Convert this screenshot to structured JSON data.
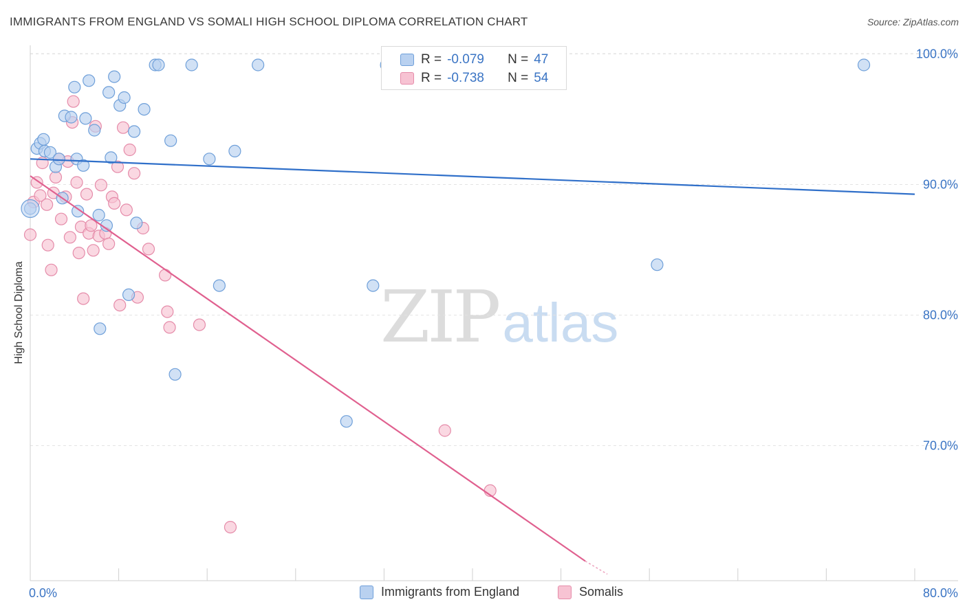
{
  "title": "IMMIGRANTS FROM ENGLAND VS SOMALI HIGH SCHOOL DIPLOMA CORRELATION CHART",
  "source": "Source: ZipAtlas.com",
  "watermark": {
    "zip": "ZIP",
    "atlas": "atlas"
  },
  "legend_top": {
    "rows": [
      {
        "r_label": "R =",
        "r_value": "-0.079",
        "n_label": "N =",
        "n_value": "47"
      },
      {
        "r_label": "R =",
        "r_value": "-0.738",
        "n_label": "N =",
        "n_value": "54"
      }
    ]
  },
  "legend_bottom": {
    "items": [
      {
        "label": "Immigrants from England"
      },
      {
        "label": "Somalis"
      }
    ]
  },
  "colors": {
    "blue_fill": "#b9d1f0",
    "blue_stroke": "#6e9fd9",
    "blue_line": "#2f6fc9",
    "pink_fill": "#f7c3d3",
    "pink_stroke": "#e58ba9",
    "pink_line": "#e0608f",
    "tick_label": "#3a74c4",
    "grid": "#e3e3e3"
  },
  "chart_data": {
    "type": "scatter",
    "title": "IMMIGRANTS FROM ENGLAND VS SOMALI HIGH SCHOOL DIPLOMA CORRELATION CHART",
    "xlabel": "",
    "ylabel": "High School Diploma",
    "xlim": [
      0,
      80
    ],
    "ylim": [
      60.5,
      101.5
    ],
    "x_tick_labels": [
      "0.0%",
      "80.0%"
    ],
    "y_ticks": [
      70,
      80,
      90,
      100
    ],
    "y_tick_labels": [
      "70.0%",
      "80.0%",
      "90.0%",
      "100.0%"
    ],
    "grid": "horizontal dashed",
    "legend": "bottom-center",
    "series": [
      {
        "name": "Immigrants from England",
        "r": -0.079,
        "n": 47,
        "trend": {
          "x": [
            0,
            80
          ],
          "y": [
            92.8,
            90.1
          ]
        },
        "points": [
          [
            0.0,
            89.0
          ],
          [
            0.6,
            93.6
          ],
          [
            0.9,
            94.0
          ],
          [
            1.2,
            94.3
          ],
          [
            1.3,
            93.4
          ],
          [
            1.8,
            93.3
          ],
          [
            2.3,
            92.2
          ],
          [
            2.6,
            92.8
          ],
          [
            2.9,
            89.8
          ],
          [
            3.1,
            96.1
          ],
          [
            3.7,
            96.0
          ],
          [
            4.0,
            98.3
          ],
          [
            4.2,
            92.8
          ],
          [
            4.3,
            88.8
          ],
          [
            4.8,
            92.3
          ],
          [
            5.0,
            95.9
          ],
          [
            5.3,
            98.8
          ],
          [
            5.8,
            95.0
          ],
          [
            6.2,
            88.5
          ],
          [
            6.3,
            79.8
          ],
          [
            6.9,
            87.7
          ],
          [
            7.1,
            97.9
          ],
          [
            7.3,
            92.9
          ],
          [
            7.6,
            99.1
          ],
          [
            8.1,
            96.9
          ],
          [
            8.5,
            97.5
          ],
          [
            8.9,
            82.4
          ],
          [
            9.4,
            94.9
          ],
          [
            9.6,
            87.9
          ],
          [
            10.3,
            96.6
          ],
          [
            11.3,
            100.0
          ],
          [
            11.6,
            100.0
          ],
          [
            12.7,
            94.2
          ],
          [
            13.1,
            76.3
          ],
          [
            14.6,
            100.0
          ],
          [
            16.2,
            92.8
          ],
          [
            17.1,
            83.1
          ],
          [
            18.5,
            93.4
          ],
          [
            20.6,
            100.0
          ],
          [
            28.6,
            72.7
          ],
          [
            31.0,
            83.1
          ],
          [
            32.2,
            100.0
          ],
          [
            56.7,
            84.7
          ],
          [
            75.4,
            100.0
          ]
        ]
      },
      {
        "name": "Somalis",
        "r": -0.738,
        "n": 54,
        "trend": {
          "x": [
            0,
            50.2
          ],
          "y": [
            91.5,
            62.0
          ],
          "dashed_to": [
            52.2,
            61.0
          ]
        },
        "points": [
          [
            0.0,
            87.0
          ],
          [
            0.3,
            89.5
          ],
          [
            0.6,
            91.0
          ],
          [
            0.9,
            90.0
          ],
          [
            1.1,
            92.5
          ],
          [
            1.5,
            89.3
          ],
          [
            1.6,
            86.2
          ],
          [
            1.9,
            84.3
          ],
          [
            2.1,
            90.2
          ],
          [
            2.3,
            91.4
          ],
          [
            2.6,
            92.8
          ],
          [
            2.8,
            88.2
          ],
          [
            3.2,
            89.9
          ],
          [
            3.4,
            92.6
          ],
          [
            3.6,
            86.8
          ],
          [
            3.8,
            95.6
          ],
          [
            3.9,
            97.2
          ],
          [
            4.2,
            91.0
          ],
          [
            4.4,
            85.6
          ],
          [
            4.6,
            87.6
          ],
          [
            4.8,
            82.1
          ],
          [
            5.1,
            90.1
          ],
          [
            5.3,
            87.1
          ],
          [
            5.5,
            87.7
          ],
          [
            5.7,
            85.8
          ],
          [
            5.9,
            95.3
          ],
          [
            6.2,
            86.9
          ],
          [
            6.4,
            90.8
          ],
          [
            6.8,
            87.1
          ],
          [
            7.1,
            86.3
          ],
          [
            7.4,
            89.9
          ],
          [
            7.6,
            89.4
          ],
          [
            7.9,
            92.2
          ],
          [
            8.1,
            81.6
          ],
          [
            8.4,
            95.2
          ],
          [
            8.7,
            88.9
          ],
          [
            9.0,
            93.5
          ],
          [
            9.4,
            91.7
          ],
          [
            9.7,
            82.2
          ],
          [
            10.2,
            87.5
          ],
          [
            10.7,
            85.9
          ],
          [
            12.2,
            83.9
          ],
          [
            12.4,
            81.1
          ],
          [
            12.6,
            79.9
          ],
          [
            15.3,
            80.1
          ],
          [
            18.1,
            64.6
          ],
          [
            37.5,
            72.0
          ],
          [
            41.6,
            67.4
          ]
        ]
      }
    ]
  }
}
